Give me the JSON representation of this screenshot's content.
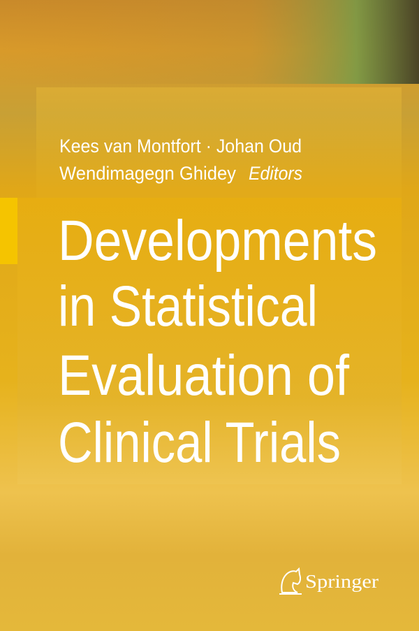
{
  "cover": {
    "editors": {
      "line1": "Kees van Montfort · Johan Oud",
      "line2": "Wendimagegn Ghidey",
      "role": "Editors"
    },
    "title_lines": [
      "Developments",
      "in Statistical",
      "Evaluation of",
      "Clinical Trials"
    ],
    "publisher": "Springer"
  }
}
